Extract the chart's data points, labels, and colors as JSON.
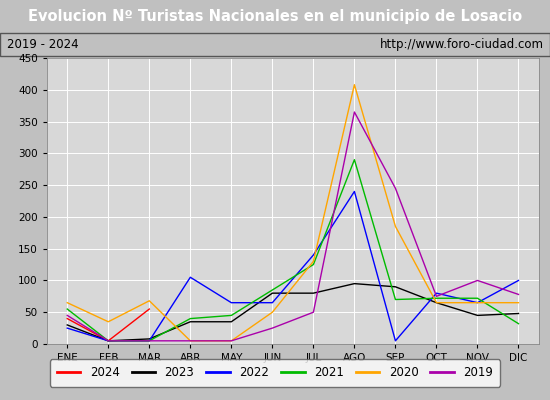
{
  "title": "Evolucion Nº Turistas Nacionales en el municipio de Losacio",
  "title_bg": "#4b7bc8",
  "subtitle_left": "2019 - 2024",
  "subtitle_right": "http://www.foro-ciudad.com",
  "months": [
    "ENE",
    "FEB",
    "MAR",
    "ABR",
    "MAY",
    "JUN",
    "JUL",
    "AGO",
    "SEP",
    "OCT",
    "NOV",
    "DIC"
  ],
  "ylim": [
    0,
    450
  ],
  "yticks": [
    0,
    50,
    100,
    150,
    200,
    250,
    300,
    350,
    400,
    450
  ],
  "series": {
    "2024": {
      "color": "#ff0000",
      "data": [
        40,
        5,
        55,
        null,
        null,
        null,
        null,
        null,
        null,
        null,
        null,
        null
      ]
    },
    "2023": {
      "color": "#000000",
      "data": [
        30,
        5,
        8,
        35,
        35,
        80,
        80,
        95,
        90,
        65,
        45,
        48
      ]
    },
    "2022": {
      "color": "#0000ff",
      "data": [
        25,
        5,
        5,
        105,
        65,
        65,
        140,
        240,
        5,
        80,
        65,
        100
      ]
    },
    "2021": {
      "color": "#00bb00",
      "data": [
        55,
        5,
        5,
        40,
        45,
        85,
        125,
        290,
        70,
        72,
        72,
        32
      ]
    },
    "2020": {
      "color": "#ffa500",
      "data": [
        65,
        35,
        68,
        5,
        5,
        50,
        130,
        408,
        185,
        65,
        65,
        65
      ]
    },
    "2019": {
      "color": "#aa00aa",
      "data": [
        45,
        5,
        5,
        5,
        5,
        25,
        50,
        365,
        245,
        75,
        100,
        78
      ]
    }
  },
  "legend_order": [
    "2024",
    "2023",
    "2022",
    "2021",
    "2020",
    "2019"
  ],
  "outer_bg": "#c0c0c0",
  "plot_bg": "#d8d8d8",
  "grid_color": "#ffffff"
}
